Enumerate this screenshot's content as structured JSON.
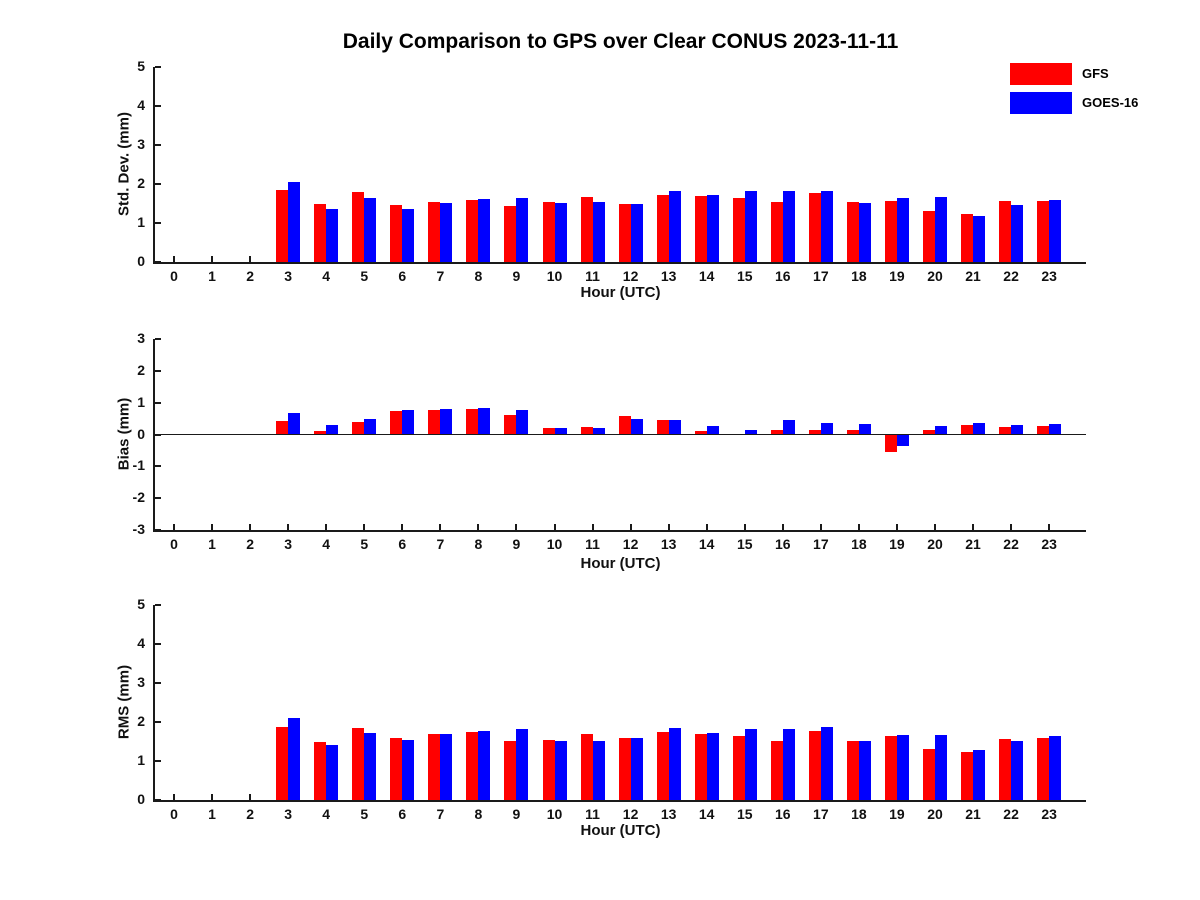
{
  "title": "Daily Comparison to GPS over Clear CONUS 2023-11-11",
  "colors": {
    "gfs": "#ff0000",
    "goes16": "#0000ff",
    "axis": "#1a1a1a"
  },
  "legend": {
    "position": "top-right",
    "entries": [
      {
        "label": "GFS",
        "color": "#ff0000"
      },
      {
        "label": "GOES-16",
        "color": "#0000ff"
      }
    ]
  },
  "chart_data": [
    {
      "type": "bar",
      "panel": "std-dev",
      "ylabel": "Std. Dev. (mm)",
      "xlabel": "Hour (UTC)",
      "x": [
        0,
        1,
        2,
        3,
        4,
        5,
        6,
        7,
        8,
        9,
        10,
        11,
        12,
        13,
        14,
        15,
        16,
        17,
        18,
        19,
        20,
        21,
        22,
        23
      ],
      "ylim": [
        0,
        5
      ],
      "yticks": [
        0,
        1,
        2,
        3,
        4,
        5
      ],
      "grid": false,
      "series": [
        {
          "name": "GFS",
          "color": "#ff0000",
          "values": [
            null,
            null,
            null,
            1.84,
            1.5,
            1.8,
            1.45,
            1.55,
            1.58,
            1.43,
            1.53,
            1.67,
            1.48,
            1.71,
            1.7,
            1.65,
            1.53,
            1.78,
            1.54,
            1.56,
            1.32,
            1.22,
            1.57,
            1.56
          ]
        },
        {
          "name": "GOES-16",
          "color": "#0000ff",
          "values": [
            null,
            null,
            null,
            2.04,
            1.37,
            1.63,
            1.35,
            1.51,
            1.61,
            1.65,
            1.52,
            1.55,
            1.48,
            1.81,
            1.73,
            1.83,
            1.81,
            1.83,
            1.51,
            1.64,
            1.67,
            1.19,
            1.47,
            1.59
          ]
        }
      ]
    },
    {
      "type": "bar",
      "panel": "bias",
      "ylabel": "Bias (mm)",
      "xlabel": "Hour (UTC)",
      "x": [
        0,
        1,
        2,
        3,
        4,
        5,
        6,
        7,
        8,
        9,
        10,
        11,
        12,
        13,
        14,
        15,
        16,
        17,
        18,
        19,
        20,
        21,
        22,
        23
      ],
      "ylim": [
        -3,
        3
      ],
      "yticks": [
        -3,
        -2,
        -1,
        0,
        1,
        2,
        3
      ],
      "grid": false,
      "zero_line": true,
      "series": [
        {
          "name": "GFS",
          "color": "#ff0000",
          "values": [
            null,
            null,
            null,
            0.42,
            0.1,
            0.39,
            0.74,
            0.77,
            0.8,
            0.61,
            0.2,
            0.24,
            0.57,
            0.47,
            0.1,
            0.03,
            0.14,
            0.14,
            0.13,
            -0.54,
            0.13,
            0.29,
            0.23,
            0.27
          ]
        },
        {
          "name": "GOES-16",
          "color": "#0000ff",
          "values": [
            null,
            null,
            null,
            0.66,
            0.29,
            0.5,
            0.77,
            0.79,
            0.83,
            0.76,
            0.2,
            0.2,
            0.5,
            0.47,
            0.27,
            0.13,
            0.45,
            0.36,
            0.33,
            -0.36,
            0.26,
            0.36,
            0.29,
            0.34
          ]
        }
      ]
    },
    {
      "type": "bar",
      "panel": "rms",
      "ylabel": "RMS (mm)",
      "xlabel": "Hour (UTC)",
      "x": [
        0,
        1,
        2,
        3,
        4,
        5,
        6,
        7,
        8,
        9,
        10,
        11,
        12,
        13,
        14,
        15,
        16,
        17,
        18,
        19,
        20,
        21,
        22,
        23
      ],
      "ylim": [
        0,
        5
      ],
      "yticks": [
        0,
        1,
        2,
        3,
        4,
        5
      ],
      "grid": false,
      "series": [
        {
          "name": "GFS",
          "color": "#ff0000",
          "values": [
            null,
            null,
            null,
            1.88,
            1.5,
            1.84,
            1.6,
            1.7,
            1.75,
            1.52,
            1.54,
            1.7,
            1.6,
            1.74,
            1.7,
            1.63,
            1.52,
            1.77,
            1.52,
            1.64,
            1.3,
            1.24,
            1.57,
            1.59
          ]
        },
        {
          "name": "GOES-16",
          "color": "#0000ff",
          "values": [
            null,
            null,
            null,
            2.11,
            1.4,
            1.71,
            1.55,
            1.68,
            1.77,
            1.81,
            1.52,
            1.52,
            1.6,
            1.85,
            1.73,
            1.82,
            1.82,
            1.86,
            1.52,
            1.67,
            1.67,
            1.28,
            1.52,
            1.63
          ]
        }
      ]
    }
  ]
}
